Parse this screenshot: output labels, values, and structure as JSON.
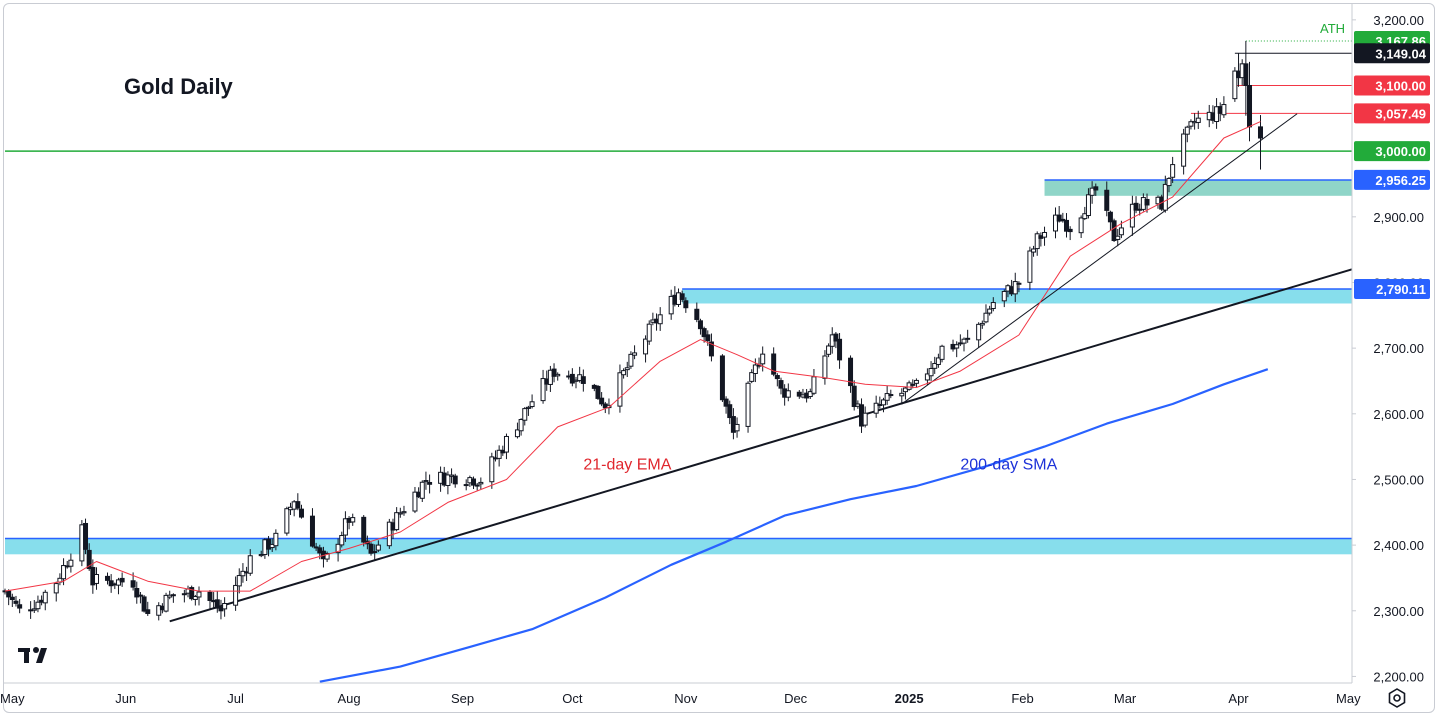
{
  "chart_data": {
    "type": "candlestick",
    "title": "Gold Daily",
    "y_axis": {
      "ticks": [
        "3,200.00",
        "2,900.00",
        "2,800.00",
        "2,700.00",
        "2,600.00",
        "2,500.00",
        "2,400.00",
        "2,300.00",
        "2,200.00"
      ],
      "ylim": [
        2190,
        3215
      ]
    },
    "x_axis": {
      "ticks": [
        {
          "label": "May",
          "date": "2024-05-01",
          "bold": false
        },
        {
          "label": "Jun",
          "date": "2024-06-01",
          "bold": false
        },
        {
          "label": "Jul",
          "date": "2024-07-01",
          "bold": false
        },
        {
          "label": "Aug",
          "date": "2024-08-01",
          "bold": false
        },
        {
          "label": "Sep",
          "date": "2024-09-01",
          "bold": false
        },
        {
          "label": "Oct",
          "date": "2024-10-01",
          "bold": false
        },
        {
          "label": "Nov",
          "date": "2024-11-01",
          "bold": false
        },
        {
          "label": "Dec",
          "date": "2024-12-01",
          "bold": false
        },
        {
          "label": "2025",
          "date": "2025-01-01",
          "bold": true
        },
        {
          "label": "Feb",
          "date": "2025-02-01",
          "bold": false
        },
        {
          "label": "Mar",
          "date": "2025-03-01",
          "bold": false
        },
        {
          "label": "Apr",
          "date": "2025-04-01",
          "bold": false
        },
        {
          "label": "May",
          "date": "2025-05-01",
          "bold": false
        }
      ],
      "xlim": [
        "2024-04-29",
        "2025-05-02"
      ]
    },
    "price_tags": [
      {
        "label": "3,167.86",
        "value": 3167.86,
        "color": "#22ab3a"
      },
      {
        "label": "3,149.04",
        "value": 3149.04,
        "color": "#131722"
      },
      {
        "label": "3,100.00",
        "value": 3100.0,
        "color": "#f23645"
      },
      {
        "label": "3,057.49",
        "value": 3057.49,
        "color": "#f23645"
      },
      {
        "label": "3,000.00",
        "value": 3000.0,
        "color": "#22ab3a"
      },
      {
        "label": "2,956.25",
        "value": 2956.25,
        "color": "#2962ff"
      },
      {
        "label": "2,790.11",
        "value": 2790.11,
        "color": "#2962ff"
      }
    ],
    "ath_label": "ATH",
    "annotations": [
      {
        "text": "21-day EMA",
        "color": "#e0262d",
        "date": "2024-10-04",
        "value": 2515
      },
      {
        "text": "200-day SMA",
        "color": "#1c31d8",
        "date": "2025-01-15",
        "value": 2515
      }
    ],
    "zones": [
      {
        "name": "2,400 support zone",
        "from": 2386,
        "to": 2410,
        "start": "2024-04-29",
        "end": "2025-05-02",
        "color": "#5fd3e6"
      },
      {
        "name": "2,790 resistance zone",
        "from": 2768,
        "to": 2790,
        "start": "2024-10-31",
        "end": "2025-05-02",
        "color": "#5fd3e6"
      },
      {
        "name": "2,956 zone",
        "from": 2932,
        "to": 2956,
        "start": "2025-02-07",
        "end": "2025-05-02",
        "color": "#6ac7b5"
      }
    ],
    "hlines": [
      {
        "value": 3000,
        "start": "2024-04-29",
        "end": "2025-05-02",
        "color": "#22ab3a"
      },
      {
        "value": 3149.04,
        "start": "2025-03-31",
        "end": "2025-05-02",
        "color": "#131722"
      },
      {
        "value": 3100,
        "start": "2025-03-31",
        "end": "2025-05-02",
        "color": "#f23645"
      },
      {
        "value": 3057.49,
        "start": "2025-03-19",
        "end": "2025-05-02",
        "color": "#f23645"
      }
    ],
    "trendlines": [
      {
        "name": "long-term trendline",
        "from": {
          "date": "2024-06-13",
          "value": 2284
        },
        "to": {
          "date": "2025-05-02",
          "value": 2820
        },
        "color": "#131722",
        "width": 2
      },
      {
        "name": "short-term trendline",
        "from": {
          "date": "2024-12-30",
          "value": 2615
        },
        "to": {
          "date": "2025-04-17",
          "value": 3057
        },
        "color": "#131722",
        "width": 1
      }
    ],
    "ema21": [
      [
        "2024-04-29",
        2330
      ],
      [
        "2024-05-15",
        2345
      ],
      [
        "2024-05-24",
        2375
      ],
      [
        "2024-06-07",
        2345
      ],
      [
        "2024-06-21",
        2330
      ],
      [
        "2024-07-05",
        2330
      ],
      [
        "2024-07-19",
        2375
      ],
      [
        "2024-08-01",
        2395
      ],
      [
        "2024-08-15",
        2420
      ],
      [
        "2024-08-28",
        2465
      ],
      [
        "2024-09-13",
        2500
      ],
      [
        "2024-09-27",
        2580
      ],
      [
        "2024-10-11",
        2610
      ],
      [
        "2024-10-25",
        2680
      ],
      [
        "2024-11-05",
        2713
      ],
      [
        "2024-11-15",
        2690
      ],
      [
        "2024-11-25",
        2665
      ],
      [
        "2024-12-09",
        2655
      ],
      [
        "2024-12-20",
        2645
      ],
      [
        "2025-01-03",
        2640
      ],
      [
        "2025-01-15",
        2665
      ],
      [
        "2025-01-31",
        2720
      ],
      [
        "2025-02-14",
        2840
      ],
      [
        "2025-02-28",
        2890
      ],
      [
        "2025-03-14",
        2930
      ],
      [
        "2025-03-28",
        3020
      ],
      [
        "2025-04-07",
        3045
      ]
    ],
    "sma200": [
      [
        "2024-07-24",
        2192
      ],
      [
        "2024-08-15",
        2215
      ],
      [
        "2024-09-03",
        2245
      ],
      [
        "2024-09-20",
        2272
      ],
      [
        "2024-10-10",
        2320
      ],
      [
        "2024-10-28",
        2370
      ],
      [
        "2024-11-12",
        2405
      ],
      [
        "2024-11-28",
        2445
      ],
      [
        "2024-12-16",
        2470
      ],
      [
        "2025-01-03",
        2490
      ],
      [
        "2025-01-22",
        2520
      ],
      [
        "2025-02-07",
        2550
      ],
      [
        "2025-02-24",
        2585
      ],
      [
        "2025-03-14",
        2615
      ],
      [
        "2025-03-28",
        2645
      ],
      [
        "2025-04-09",
        2668
      ]
    ],
    "price_anchors": [
      [
        "2024-04-29",
        2330
      ],
      [
        "2024-05-03",
        2300
      ],
      [
        "2024-05-08",
        2315
      ],
      [
        "2024-05-13",
        2345
      ],
      [
        "2024-05-20",
        2420
      ],
      [
        "2024-05-23",
        2345
      ],
      [
        "2024-06-03",
        2345
      ],
      [
        "2024-06-07",
        2295
      ],
      [
        "2024-06-14",
        2325
      ],
      [
        "2024-06-21",
        2330
      ],
      [
        "2024-06-27",
        2300
      ],
      [
        "2024-07-05",
        2380
      ],
      [
        "2024-07-12",
        2410
      ],
      [
        "2024-07-17",
        2470
      ],
      [
        "2024-07-25",
        2370
      ],
      [
        "2024-08-01",
        2440
      ],
      [
        "2024-08-07",
        2385
      ],
      [
        "2024-08-15",
        2450
      ],
      [
        "2024-08-22",
        2500
      ],
      [
        "2024-08-30",
        2505
      ],
      [
        "2024-09-06",
        2500
      ],
      [
        "2024-09-12",
        2550
      ],
      [
        "2024-09-20",
        2620
      ],
      [
        "2024-09-26",
        2665
      ],
      [
        "2024-10-04",
        2655
      ],
      [
        "2024-10-10",
        2615
      ],
      [
        "2024-10-16",
        2670
      ],
      [
        "2024-10-23",
        2735
      ],
      [
        "2024-10-30",
        2785
      ],
      [
        "2024-11-05",
        2740
      ],
      [
        "2024-11-08",
        2685
      ],
      [
        "2024-11-14",
        2570
      ],
      [
        "2024-11-22",
        2700
      ],
      [
        "2024-11-27",
        2635
      ],
      [
        "2024-12-05",
        2630
      ],
      [
        "2024-12-11",
        2720
      ],
      [
        "2024-12-19",
        2590
      ],
      [
        "2024-12-27",
        2625
      ],
      [
        "2025-01-03",
        2640
      ],
      [
        "2025-01-10",
        2700
      ],
      [
        "2025-01-17",
        2710
      ],
      [
        "2025-01-24",
        2770
      ],
      [
        "2025-01-31",
        2800
      ],
      [
        "2025-02-05",
        2865
      ],
      [
        "2025-02-11",
        2900
      ],
      [
        "2025-02-14",
        2885
      ],
      [
        "2025-02-21",
        2940
      ],
      [
        "2025-02-26",
        2870
      ],
      [
        "2025-03-04",
        2920
      ],
      [
        "2025-03-11",
        2920
      ],
      [
        "2025-03-14",
        2985
      ],
      [
        "2025-03-20",
        3045
      ],
      [
        "2025-03-27",
        3060
      ],
      [
        "2025-04-01",
        3115
      ],
      [
        "2025-04-03",
        3105
      ],
      [
        "2025-04-04",
        3035
      ],
      [
        "2025-04-07",
        3030
      ]
    ],
    "last_candles": [
      {
        "date": "2025-03-31",
        "open": 3080,
        "high": 3128,
        "low": 3075,
        "close": 3122
      },
      {
        "date": "2025-04-01",
        "open": 3122,
        "high": 3149,
        "low": 3098,
        "close": 3112
      },
      {
        "date": "2025-04-02",
        "open": 3112,
        "high": 3140,
        "low": 3100,
        "close": 3133
      },
      {
        "date": "2025-04-03",
        "open": 3133,
        "high": 3167.86,
        "low": 3054,
        "close": 3100
      },
      {
        "date": "2025-04-04",
        "open": 3100,
        "high": 3136,
        "low": 3015,
        "close": 3037
      },
      {
        "date": "2025-04-07",
        "open": 3037,
        "high": 3055,
        "low": 2972,
        "close": 3020
      }
    ]
  }
}
